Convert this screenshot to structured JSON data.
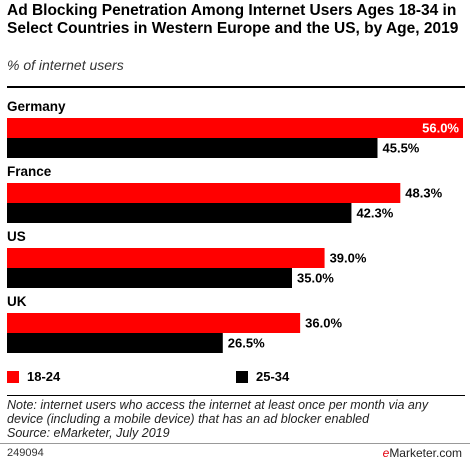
{
  "title": "Ad Blocking Penetration Among Internet Users Ages 18-34 in Select Countries in Western Europe and the US, by Age, 2019",
  "subtitle": "% of internet users",
  "note": "Note: internet users who access the internet at least once per month via any device (including a mobile device) that has an ad blocker enabled",
  "source": "Source: eMarketer, July 2019",
  "footer": {
    "id": "249094",
    "brand_e": "e",
    "brand_rest": "Marketer.com"
  },
  "colors": {
    "series_1": "#ff0000",
    "series_2": "#000000"
  },
  "chart_data": {
    "type": "bar",
    "orientation": "horizontal",
    "categories": [
      "Germany",
      "France",
      "US",
      "UK"
    ],
    "series": [
      {
        "name": "18-24",
        "values": [
          56.0,
          48.3,
          39.0,
          36.0
        ],
        "labels": [
          "56.0%",
          "48.3%",
          "39.0%",
          "36.0%"
        ]
      },
      {
        "name": "25-34",
        "values": [
          45.5,
          42.3,
          35.0,
          26.5
        ],
        "labels": [
          "45.5%",
          "42.3%",
          "35.0%",
          "26.5%"
        ]
      }
    ],
    "xlim": [
      0,
      56
    ],
    "grid": false,
    "legend_position": "bottom"
  }
}
